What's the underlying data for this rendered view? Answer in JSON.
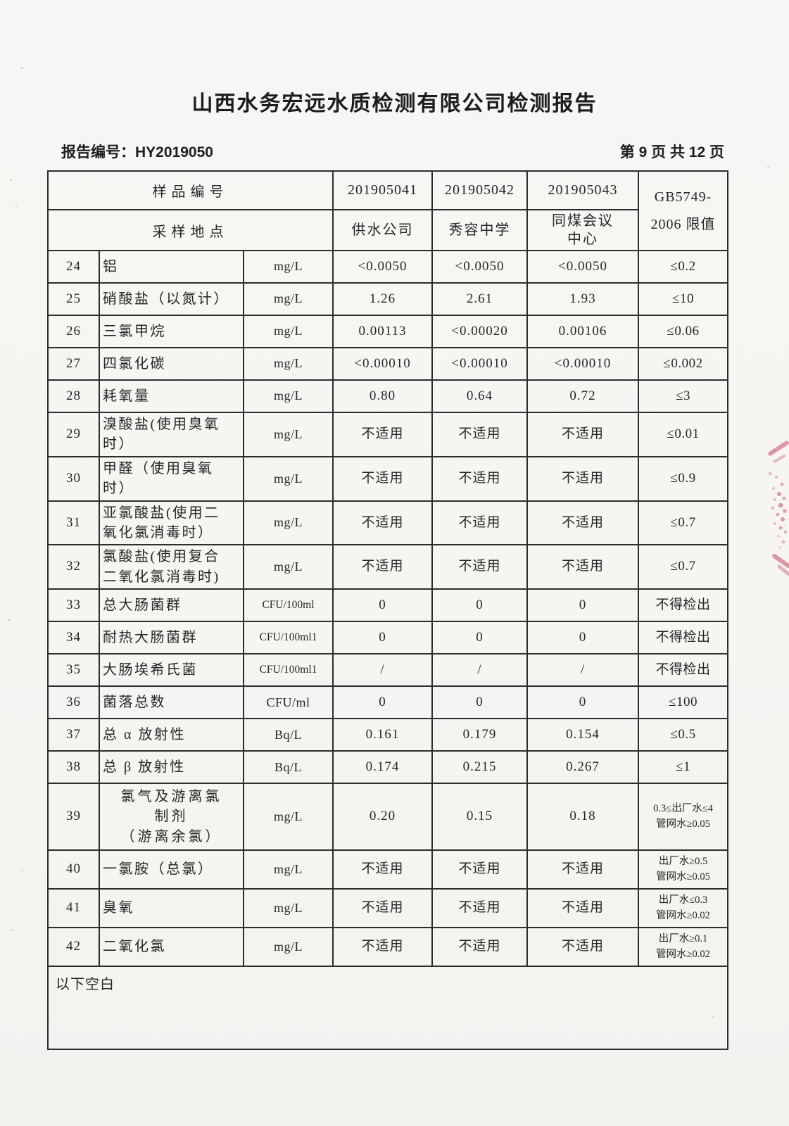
{
  "page": {
    "title": "山西水务宏远水质检测有限公司检测报告",
    "report_no_label": "报告编号：",
    "report_no": "HY2019050",
    "page_indicator": "第 9 页 共 12 页"
  },
  "colors": {
    "stamp_red": "#c84a63",
    "ink": "#262626",
    "paper": "#f7f5f2"
  },
  "table": {
    "header": {
      "sample_no_label": "样品编号",
      "sample_location_label": "采样地点",
      "sample_ids": [
        "201905041",
        "201905042",
        "201905043"
      ],
      "locations": [
        [
          "供水公司"
        ],
        [
          "秀容中学"
        ],
        [
          "同煤会议",
          "中心"
        ]
      ],
      "limit_header": [
        "GB5749-",
        "2006 限值"
      ]
    },
    "rows": [
      {
        "num": "24",
        "name": [
          "铝"
        ],
        "unit": "mg/L",
        "values": [
          "<0.0050",
          "<0.0050",
          "<0.0050"
        ],
        "limit": [
          "≤0.2"
        ]
      },
      {
        "num": "25",
        "name": [
          "硝酸盐（以氮计）"
        ],
        "unit": "mg/L",
        "values": [
          "1.26",
          "2.61",
          "1.93"
        ],
        "limit": [
          "≤10"
        ]
      },
      {
        "num": "26",
        "name": [
          "三氯甲烷"
        ],
        "unit": "mg/L",
        "values": [
          "0.00113",
          "<0.00020",
          "0.00106"
        ],
        "limit": [
          "≤0.06"
        ]
      },
      {
        "num": "27",
        "name": [
          "四氯化碳"
        ],
        "unit": "mg/L",
        "values": [
          "<0.00010",
          "<0.00010",
          "<0.00010"
        ],
        "limit": [
          "≤0.002"
        ]
      },
      {
        "num": "28",
        "name": [
          "耗氧量"
        ],
        "unit": "mg/L",
        "values": [
          "0.80",
          "0.64",
          "0.72"
        ],
        "limit": [
          "≤3"
        ]
      },
      {
        "num": "29",
        "name": [
          "溴酸盐(使用臭氧",
          "时）"
        ],
        "unit": "mg/L",
        "values": [
          "不适用",
          "不适用",
          "不适用"
        ],
        "limit": [
          "≤0.01"
        ]
      },
      {
        "num": "30",
        "name": [
          "甲醛（使用臭氧",
          "时）"
        ],
        "unit": "mg/L",
        "values": [
          "不适用",
          "不适用",
          "不适用"
        ],
        "limit": [
          "≤0.9"
        ]
      },
      {
        "num": "31",
        "name": [
          "亚氯酸盐(使用二",
          "氧化氯消毒时）"
        ],
        "unit": "mg/L",
        "values": [
          "不适用",
          "不适用",
          "不适用"
        ],
        "limit": [
          "≤0.7"
        ]
      },
      {
        "num": "32",
        "name": [
          "氯酸盐(使用复合",
          "二氧化氯消毒时)"
        ],
        "unit": "mg/L",
        "values": [
          "不适用",
          "不适用",
          "不适用"
        ],
        "limit": [
          "≤0.7"
        ]
      },
      {
        "num": "33",
        "name": [
          "总大肠菌群"
        ],
        "unit": "CFU/100ml",
        "values": [
          "0",
          "0",
          "0"
        ],
        "limit": [
          "不得检出"
        ]
      },
      {
        "num": "34",
        "name": [
          "耐热大肠菌群"
        ],
        "unit": "CFU/100ml1",
        "values": [
          "0",
          "0",
          "0"
        ],
        "limit": [
          "不得检出"
        ]
      },
      {
        "num": "35",
        "name": [
          "大肠埃希氏菌"
        ],
        "unit": "CFU/100ml1",
        "values": [
          "/",
          "/",
          "/"
        ],
        "limit": [
          "不得检出"
        ]
      },
      {
        "num": "36",
        "name": [
          "菌落总数"
        ],
        "unit": "CFU/ml",
        "values": [
          "0",
          "0",
          "0"
        ],
        "limit": [
          "≤100"
        ]
      },
      {
        "num": "37",
        "name": [
          "总 α 放射性"
        ],
        "unit": "Bq/L",
        "values": [
          "0.161",
          "0.179",
          "0.154"
        ],
        "limit": [
          "≤0.5"
        ]
      },
      {
        "num": "38",
        "name": [
          "总 β 放射性"
        ],
        "unit": "Bq/L",
        "values": [
          "0.174",
          "0.215",
          "0.267"
        ],
        "limit": [
          "≤1"
        ]
      },
      {
        "num": "39",
        "name": [
          "氯气及游离氯",
          "制剂",
          "（游离余氯）"
        ],
        "unit": "mg/L",
        "values": [
          "0.20",
          "0.15",
          "0.18"
        ],
        "limit": [
          "0.3≤出厂水≤4",
          "管网水≥0.05"
        ]
      },
      {
        "num": "40",
        "name": [
          "一氯胺（总氯）"
        ],
        "unit": "mg/L",
        "values": [
          "不适用",
          "不适用",
          "不适用"
        ],
        "limit": [
          "出厂水≥0.5",
          "管网水≥0.05"
        ]
      },
      {
        "num": "41",
        "name": [
          "臭氧"
        ],
        "unit": "mg/L",
        "values": [
          "不适用",
          "不适用",
          "不适用"
        ],
        "limit": [
          "出厂水≤0.3",
          "管网水≥0.02"
        ]
      },
      {
        "num": "42",
        "name": [
          "二氧化氯"
        ],
        "unit": "mg/L",
        "values": [
          "不适用",
          "不适用",
          "不适用"
        ],
        "limit": [
          "出厂水≥0.1",
          "管网水≥0.02"
        ]
      }
    ],
    "footer_note": "以下空白"
  }
}
